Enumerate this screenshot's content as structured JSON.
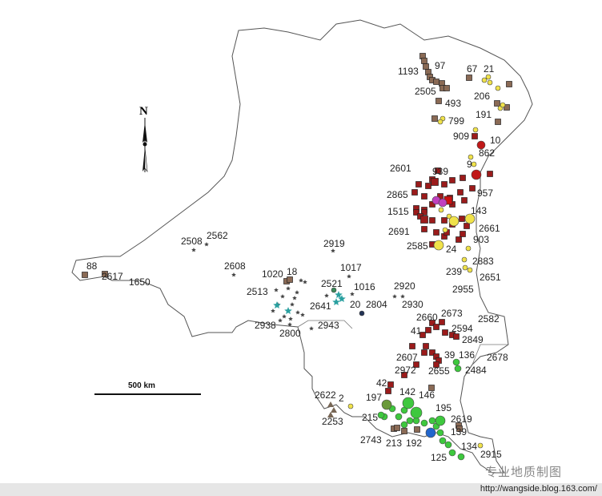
{
  "map": {
    "north_label": "N",
    "scale_label": "500 km",
    "deposit_labels": [
      "1193",
      "97",
      "67",
      "21",
      "2505",
      "493",
      "206",
      "799",
      "191",
      "909",
      "10",
      "862",
      "9",
      "2601",
      "939",
      "2865",
      "957",
      "143",
      "1515",
      "2661",
      "2691",
      "903",
      "2585",
      "24",
      "2883",
      "239",
      "2651",
      "2955",
      "2508",
      "2562",
      "2919",
      "2608",
      "1017",
      "1020",
      "18",
      "2521",
      "1016",
      "2920",
      "2513",
      "2641",
      "20",
      "2804",
      "2930",
      "88",
      "2617",
      "1650",
      "2938",
      "2943",
      "2800",
      "2660",
      "2673",
      "2582",
      "2594",
      "41",
      "2849",
      "2607",
      "39",
      "136",
      "2678",
      "2972",
      "2655",
      "2484",
      "42",
      "142",
      "146",
      "197",
      "2622",
      "2",
      "195",
      "215",
      "2619",
      "2253",
      "139",
      "2743",
      "213",
      "192",
      "134",
      "125",
      "2915"
    ],
    "symbol_colors": {
      "brown_square": "#8a6a55",
      "red_square": "#9b1b1b",
      "yellow_circle": "#f0e24a",
      "green_circle": "#3ec83e",
      "star": "#444444",
      "teal_star": "#2aa0a0",
      "magenta_circle": "#c040c0",
      "blue_circle": "#2266cc",
      "triangle": "#776655"
    }
  },
  "watermark": "专业地质制图",
  "footer_url": "http://wangside.blog.163.com/"
}
